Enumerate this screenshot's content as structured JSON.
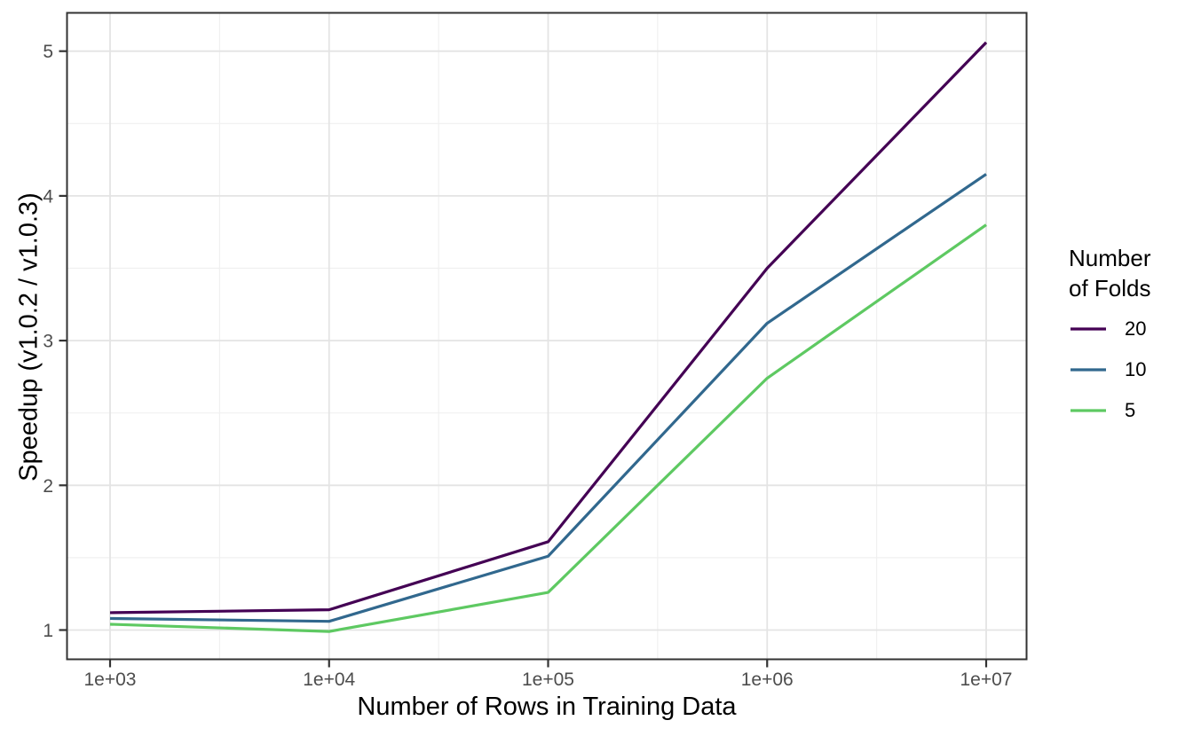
{
  "figure": {
    "background_color": "#ffffff"
  },
  "chart_data": {
    "type": "line",
    "title": "",
    "xlabel": "Number of Rows in Training Data",
    "ylabel": "Speedup (v1.0.2 / v1.0.3)",
    "x_scale": "log10",
    "x": [
      1000,
      10000,
      100000,
      1000000,
      10000000
    ],
    "x_tick_labels": [
      "1e+03",
      "1e+04",
      "1e+05",
      "1e+06",
      "1e+07"
    ],
    "y_ticks": [
      1,
      2,
      3,
      4,
      5
    ],
    "ylim": [
      0.79,
      5.27
    ],
    "x_range_log10": [
      2.8,
      7.19
    ],
    "grid": {
      "major": true,
      "minor": true
    },
    "legend": {
      "position": "right",
      "title": "Number of Folds",
      "title_lines": [
        "Number",
        "of Folds"
      ]
    },
    "series": [
      {
        "name": "20",
        "color": "#440154",
        "values": [
          1.12,
          1.14,
          1.61,
          3.5,
          5.06
        ]
      },
      {
        "name": "10",
        "color": "#31688E",
        "values": [
          1.08,
          1.06,
          1.51,
          3.12,
          4.15
        ]
      },
      {
        "name": "5",
        "color": "#5EC962",
        "values": [
          1.04,
          0.99,
          1.26,
          2.74,
          3.8
        ]
      }
    ],
    "style": {
      "panel_border_color": "#333333",
      "grid_major_color": "#E4E4E4",
      "grid_minor_color": "#F0F0F0",
      "tick_color": "#333333",
      "tick_label_color": "#4D4D4D",
      "axis_title_color": "#000000"
    }
  }
}
